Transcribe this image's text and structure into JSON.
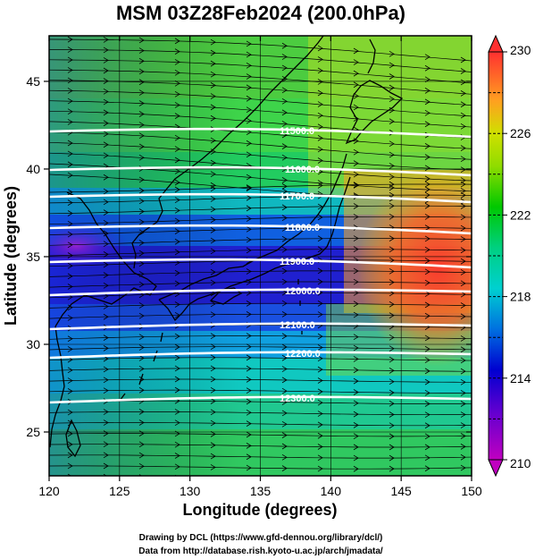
{
  "title": "MSM 03Z28Feb2024 (200.0hPa)",
  "x_axis": {
    "label": "Longitude (degrees)",
    "ticks": [
      120,
      125,
      130,
      135,
      140,
      145,
      150
    ],
    "range": [
      120,
      150
    ]
  },
  "y_axis": {
    "label": "Latitude  (degrees)",
    "ticks": [
      25,
      30,
      35,
      40,
      45
    ],
    "range": [
      22.5,
      47.6
    ]
  },
  "colorbar": {
    "range": [
      210,
      230
    ],
    "labels": [
      210,
      214,
      218,
      222,
      226,
      230
    ],
    "colors": [
      "#c000c0",
      "#0000d0",
      "#00d0d0",
      "#00c800",
      "#d0e000",
      "#ff6020",
      "#ff3030"
    ]
  },
  "contours": [
    {
      "label": "11500.0"
    },
    {
      "label": "11600.0"
    },
    {
      "label": "11700.0"
    },
    {
      "label": "11800.0"
    },
    {
      "label": "11900.0"
    },
    {
      "label": "12000.0"
    },
    {
      "label": "12100.0"
    },
    {
      "label": "12200.0"
    },
    {
      "label": "12300.0"
    }
  ],
  "credits": {
    "line1": "Drawing by DCL (https://www.gfd-dennou.org/library/dcl/)",
    "line2": "Data from http://database.rish.kyoto-u.ac.jp/arch/jmadata/"
  }
}
